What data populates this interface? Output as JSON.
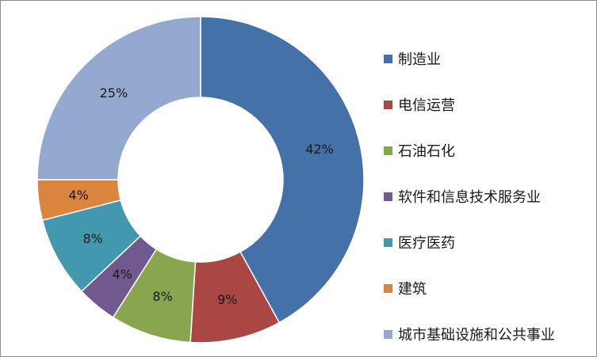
{
  "chart_data": {
    "type": "pie",
    "variant": "donut",
    "title": "",
    "legend_position": "right",
    "slices": [
      {
        "label": "制造业",
        "value": 42,
        "display": "42%",
        "color": "#4472a8"
      },
      {
        "label": "电信运营",
        "value": 9,
        "display": "9%",
        "color": "#aa4644"
      },
      {
        "label": "石油石化",
        "value": 8,
        "display": "8%",
        "color": "#89a54e"
      },
      {
        "label": "软件和信息技术服务业",
        "value": 4,
        "display": "4%",
        "color": "#71588f"
      },
      {
        "label": "医疗医药",
        "value": 8,
        "display": "8%",
        "color": "#4198af"
      },
      {
        "label": "建筑",
        "value": 4,
        "display": "4%",
        "color": "#db843d"
      },
      {
        "label": "城市基础设施和公共事业",
        "value": 25,
        "display": "25%",
        "color": "#93a9cf"
      }
    ]
  }
}
